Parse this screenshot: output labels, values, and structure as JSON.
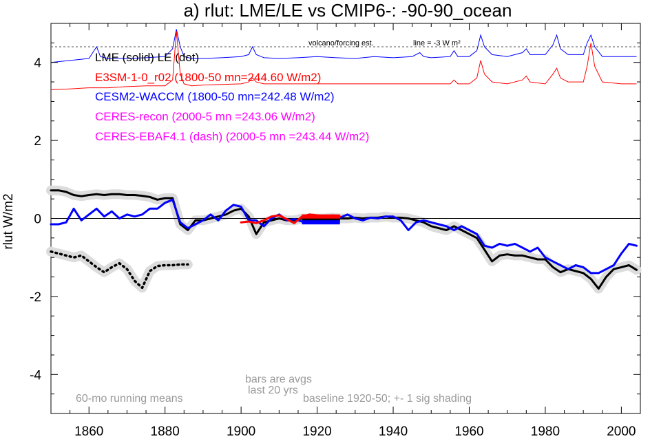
{
  "chart_data": {
    "type": "line",
    "title": "a) rlut: LME/LE vs CMIP6-: -90-90_ocean",
    "ylabel": "rlut W/m2",
    "xlabel": "",
    "xlim": [
      1850,
      2005
    ],
    "ylim": [
      -5,
      5
    ],
    "xticks": [
      1860,
      1880,
      1900,
      1920,
      1940,
      1960,
      1980,
      2000
    ],
    "yticks": [
      -4,
      -2,
      0,
      2,
      4
    ],
    "zero_line": 0,
    "forcing_reference": {
      "label": "volcano/forcing est.",
      "line_label": "line = -3 W m²",
      "y": 4.4
    },
    "legend": [
      {
        "text": "LME (solid)   LE (dot)",
        "color": "#000000"
      },
      {
        "text": "E3SM-1-0_r02 (1800-50 mn=244.60 W/m2)",
        "color": "#ff0000"
      },
      {
        "text": "CESM2-WACCM (1800-50 mn=242.48 W/m2)",
        "color": "#0000ff"
      },
      {
        "text": "CERES-recon (2000-5 mn =243.06 W/m2)",
        "color": "#ff00ff"
      },
      {
        "text": "CERES-EBAF4.1 (dash) (2000-5 mn =243.44 W/m2)",
        "color": "#ff00ff"
      }
    ],
    "notes": {
      "running_mean": "60-mo running means",
      "bars_line1": "bars are avgs",
      "bars_line2": "last 20 yrs",
      "baseline": "baseline 1920-50; +- 1 sig shading"
    },
    "series": [
      {
        "name": "LME",
        "color": "#000000",
        "style": "solid",
        "shading": true,
        "x": [
          1850,
          1852,
          1854,
          1856,
          1858,
          1860,
          1862,
          1864,
          1866,
          1868,
          1870,
          1872,
          1874,
          1876,
          1878,
          1880,
          1882,
          1884,
          1886,
          1888,
          1890,
          1892,
          1894,
          1896,
          1898,
          1900,
          1902,
          1904,
          1906,
          1908,
          1910,
          1912,
          1914,
          1916,
          1918,
          1920,
          1922,
          1924,
          1926,
          1928,
          1930,
          1932,
          1934,
          1936,
          1938,
          1940,
          1942,
          1944,
          1946,
          1948,
          1950,
          1952,
          1954,
          1956,
          1958,
          1960,
          1962,
          1964,
          1966,
          1968,
          1970,
          1972,
          1974,
          1976,
          1978,
          1980,
          1982,
          1984,
          1986,
          1988,
          1990,
          1992,
          1994,
          1996,
          1998,
          2000,
          2002,
          2004
        ],
        "y": [
          0.72,
          0.72,
          0.68,
          0.6,
          0.57,
          0.6,
          0.62,
          0.6,
          0.62,
          0.62,
          0.6,
          0.6,
          0.58,
          0.55,
          0.48,
          0.52,
          0.52,
          -0.15,
          -0.3,
          -0.05,
          -0.05,
          0.0,
          0.05,
          0.1,
          0.2,
          0.25,
          0.05,
          -0.4,
          -0.1,
          -0.05,
          0.0,
          -0.05,
          -0.05,
          0.0,
          0.0,
          0.0,
          0.0,
          0.02,
          0.0,
          0.0,
          0.02,
          0.0,
          0.02,
          0.02,
          0.05,
          0.02,
          0.02,
          0.0,
          -0.05,
          -0.1,
          -0.2,
          -0.25,
          -0.3,
          -0.2,
          -0.3,
          -0.4,
          -0.5,
          -0.8,
          -1.1,
          -0.95,
          -0.92,
          -0.95,
          -0.95,
          -1.0,
          -1.05,
          -1.05,
          -1.25,
          -1.38,
          -1.3,
          -1.35,
          -1.4,
          -1.55,
          -1.8,
          -1.5,
          -1.3,
          -1.25,
          -1.2,
          -1.32
        ]
      },
      {
        "name": "LE",
        "color": "#000000",
        "style": "dot",
        "shading": true,
        "x": [
          1850,
          1852,
          1854,
          1856,
          1858,
          1860,
          1862,
          1864,
          1866,
          1868,
          1870,
          1872,
          1874,
          1876,
          1878,
          1880,
          1882,
          1884,
          1886
        ],
        "y": [
          -0.85,
          -0.9,
          -0.95,
          -1.0,
          -0.95,
          -1.1,
          -1.25,
          -1.38,
          -1.25,
          -1.15,
          -1.3,
          -1.6,
          -1.78,
          -1.35,
          -1.22,
          -1.2,
          -1.2,
          -1.18,
          -1.18
        ]
      },
      {
        "name": "E3SM-1-0_r02",
        "color": "#ff0000",
        "style": "solid",
        "shading": false,
        "x": [
          1900,
          1902,
          1904,
          1906,
          1908,
          1910,
          1912,
          1914,
          1916,
          1918,
          1920,
          1922,
          1924,
          1926
        ],
        "y": [
          -0.1,
          -0.08,
          -0.12,
          -0.05,
          0.05,
          0.08,
          -0.02,
          -0.12,
          0.05,
          0.1,
          0.08,
          0.05,
          0.08,
          0.05
        ]
      },
      {
        "name": "CESM2-WACCM",
        "color": "#0000ff",
        "style": "solid",
        "shading": false,
        "x": [
          1850,
          1852,
          1854,
          1856,
          1858,
          1860,
          1862,
          1864,
          1866,
          1868,
          1870,
          1872,
          1874,
          1876,
          1878,
          1880,
          1882,
          1884,
          1886,
          1888,
          1890,
          1892,
          1894,
          1896,
          1898,
          1900,
          1902,
          1904,
          1906,
          1908,
          1910,
          1912,
          1914,
          1916,
          1918,
          1920,
          1922,
          1924,
          1926,
          1928,
          1930,
          1932,
          1934,
          1936,
          1938,
          1940,
          1942,
          1944,
          1946,
          1948,
          1950,
          1952,
          1954,
          1956,
          1958,
          1960,
          1962,
          1964,
          1966,
          1968,
          1970,
          1972,
          1974,
          1976,
          1978,
          1980,
          1982,
          1984,
          1986,
          1988,
          1990,
          1992,
          1994,
          1996,
          1998,
          2000,
          2002,
          2004
        ],
        "y": [
          -0.15,
          -0.15,
          -0.1,
          0.25,
          -0.05,
          0.1,
          0.25,
          0.05,
          0.18,
          0.0,
          0.1,
          0.05,
          0.1,
          0.25,
          0.25,
          0.4,
          0.48,
          -0.1,
          -0.25,
          -0.15,
          -0.05,
          0.1,
          -0.05,
          0.2,
          0.35,
          0.3,
          -0.05,
          -0.05,
          -0.2,
          0.0,
          0.1,
          -0.05,
          -0.02,
          -0.08,
          -0.02,
          0.0,
          0.0,
          -0.02,
          0.02,
          0.1,
          0.0,
          -0.05,
          0.02,
          0.0,
          0.05,
          0.05,
          -0.05,
          -0.3,
          -0.1,
          -0.05,
          -0.1,
          -0.15,
          -0.2,
          -0.3,
          -0.2,
          -0.3,
          -0.4,
          -0.7,
          -0.75,
          -0.65,
          -0.7,
          -0.65,
          -0.75,
          -0.85,
          -0.75,
          -1.0,
          -1.1,
          -1.2,
          -1.3,
          -1.2,
          -1.25,
          -1.4,
          -1.4,
          -1.3,
          -1.2,
          -0.9,
          -0.65,
          -0.7
        ]
      }
    ],
    "bars": [
      {
        "name": "LME",
        "color": "#000000",
        "x_start": 1916,
        "x_end": 1926,
        "value": -0.05
      },
      {
        "name": "CESM2-WACCM",
        "color": "#0000ff",
        "x_start": 1916,
        "x_end": 1926,
        "value": -0.1
      },
      {
        "name": "E3SM-1-0_r02",
        "color": "#ff0000",
        "x_start": 1916,
        "x_end": 1926,
        "value": 0.05
      }
    ],
    "forcing_traces": [
      {
        "name": "CESM2-WACCM forcing",
        "color": "#0000ff",
        "x": [
          1850,
          1855,
          1860,
          1861,
          1862,
          1863,
          1865,
          1870,
          1875,
          1880,
          1882,
          1883,
          1884,
          1885,
          1887,
          1890,
          1895,
          1900,
          1902,
          1903,
          1904,
          1906,
          1910,
          1915,
          1920,
          1925,
          1930,
          1935,
          1940,
          1945,
          1947,
          1948,
          1950,
          1955,
          1956,
          1957,
          1960,
          1962,
          1963,
          1964,
          1966,
          1970,
          1974,
          1975,
          1976,
          1980,
          1982,
          1983,
          1984,
          1986,
          1990,
          1991,
          1992,
          1993,
          1995,
          2000,
          2004
        ],
        "y": [
          4.0,
          4.05,
          4.1,
          4.25,
          4.4,
          4.15,
          4.1,
          4.1,
          4.12,
          4.15,
          4.35,
          4.85,
          4.4,
          4.15,
          4.1,
          4.1,
          4.12,
          4.15,
          4.2,
          4.4,
          4.2,
          4.12,
          4.1,
          4.12,
          4.15,
          4.12,
          4.1,
          4.15,
          4.12,
          4.15,
          4.25,
          4.15,
          4.12,
          4.15,
          4.3,
          4.15,
          4.15,
          4.3,
          4.7,
          4.4,
          4.2,
          4.15,
          4.25,
          4.35,
          4.2,
          4.2,
          4.45,
          4.7,
          4.35,
          4.2,
          4.2,
          4.5,
          4.7,
          4.4,
          4.15,
          4.15,
          4.15
        ]
      },
      {
        "name": "E3SM-1-0_r02 forcing",
        "color": "#ff0000",
        "x": [
          1850,
          1855,
          1860,
          1865,
          1870,
          1875,
          1880,
          1882,
          1883,
          1884,
          1885,
          1887,
          1890,
          1900,
          1902,
          1903,
          1904,
          1906,
          1910,
          1920,
          1930,
          1940,
          1950,
          1955,
          1956,
          1957,
          1960,
          1962,
          1963,
          1964,
          1966,
          1970,
          1974,
          1975,
          1976,
          1980,
          1982,
          1983,
          1984,
          1986,
          1990,
          1991,
          1992,
          1993,
          1995,
          2000,
          2004
        ],
        "y": [
          3.3,
          3.32,
          3.35,
          3.35,
          3.38,
          3.4,
          3.4,
          3.55,
          4.8,
          3.7,
          3.45,
          3.4,
          3.42,
          3.45,
          3.5,
          3.6,
          3.5,
          3.45,
          3.45,
          3.45,
          3.45,
          3.45,
          3.45,
          3.45,
          3.55,
          3.45,
          3.45,
          3.6,
          4.05,
          3.7,
          3.5,
          3.45,
          3.55,
          3.65,
          3.5,
          3.45,
          3.7,
          3.85,
          3.6,
          3.5,
          3.5,
          3.9,
          4.5,
          3.9,
          3.5,
          3.45,
          3.45
        ]
      }
    ]
  }
}
